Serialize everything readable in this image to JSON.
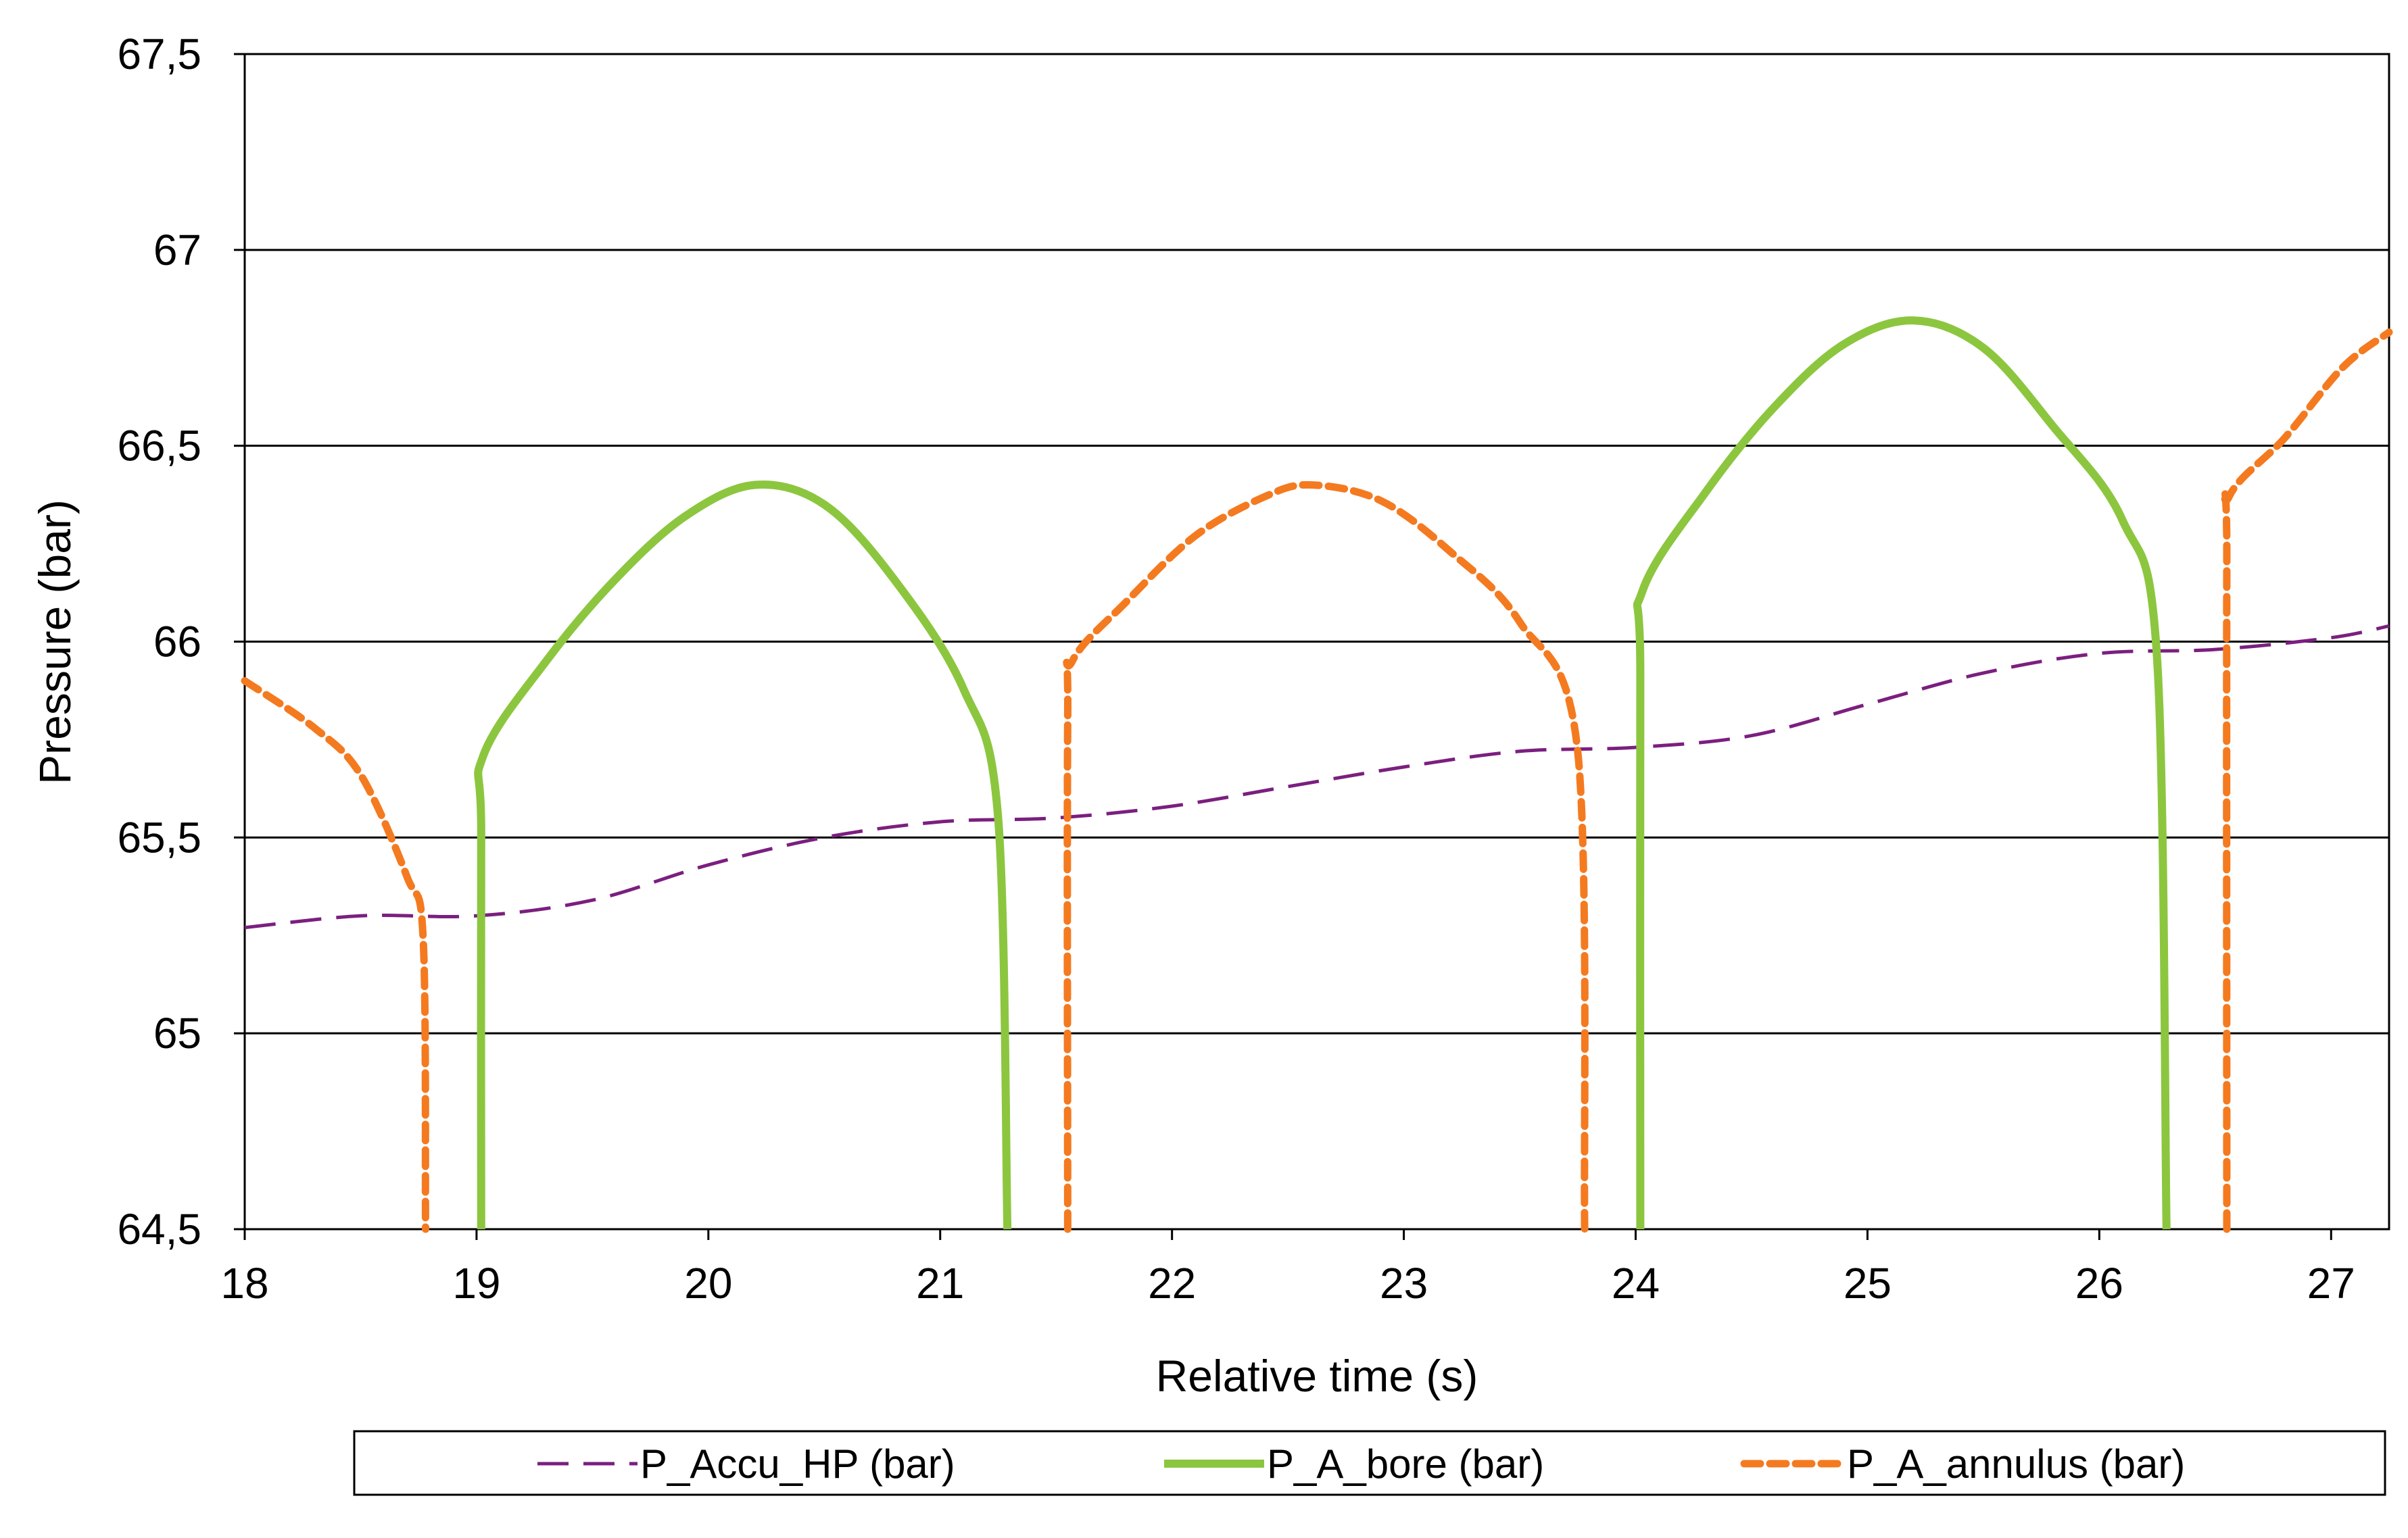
{
  "chart_data": {
    "type": "line",
    "title": "",
    "xlabel": "Relative time (s)",
    "ylabel": "Pressure (bar)",
    "xlim": [
      18,
      27.25
    ],
    "ylim": [
      64.5,
      67.5
    ],
    "grid": {
      "horizontal": true,
      "vertical": false
    },
    "legend_placement": "bottom",
    "x_ticks": [
      18,
      19,
      20,
      21,
      22,
      23,
      24,
      25,
      26,
      27
    ],
    "x_tick_labels": [
      "18",
      "19",
      "20",
      "21",
      "22",
      "23",
      "24",
      "25",
      "26",
      "27"
    ],
    "y_ticks": [
      64.5,
      65,
      65.5,
      66,
      66.5,
      67,
      67.5
    ],
    "y_tick_labels": [
      "64,5",
      "65",
      "65,5",
      "66",
      "66,5",
      "67",
      "67,5"
    ],
    "series": [
      {
        "name": "P_Accu_HP (bar)",
        "color": "#7b1f7f",
        "style": "long-dash-thin",
        "segments": [
          [
            [
              18,
              65.27
            ],
            [
              18.5,
              65.3
            ],
            [
              19,
              65.3
            ],
            [
              19.5,
              65.34
            ],
            [
              20,
              65.43
            ],
            [
              20.5,
              65.5
            ],
            [
              21,
              65.54
            ],
            [
              21.5,
              65.55
            ],
            [
              22,
              65.58
            ],
            [
              22.5,
              65.63
            ],
            [
              23,
              65.68
            ],
            [
              23.5,
              65.72
            ],
            [
              24,
              65.73
            ],
            [
              24.5,
              65.76
            ],
            [
              25,
              65.84
            ],
            [
              25.5,
              65.92
            ],
            [
              26,
              65.97
            ],
            [
              26.5,
              65.98
            ],
            [
              27,
              66.01
            ],
            [
              27.25,
              66.04
            ]
          ]
        ]
      },
      {
        "name": "P_A_bore (bar)",
        "color": "#8cc63f",
        "style": "solid-thick",
        "segments": [
          [
            [
              19.02,
              64.5
            ],
            [
              19.02,
              65.5
            ],
            [
              19.03,
              65.71
            ],
            [
              19.3,
              65.95
            ],
            [
              19.6,
              66.16
            ],
            [
              19.9,
              66.32
            ],
            [
              20.2,
              66.4
            ],
            [
              20.5,
              66.35
            ],
            [
              20.8,
              66.16
            ],
            [
              21.1,
              65.88
            ],
            [
              21.25,
              65.55
            ],
            [
              21.29,
              64.5
            ]
          ],
          [
            [
              24.02,
              64.5
            ],
            [
              24.02,
              65.9
            ],
            [
              24.03,
              66.13
            ],
            [
              24.3,
              66.38
            ],
            [
              24.6,
              66.6
            ],
            [
              24.9,
              66.76
            ],
            [
              25.2,
              66.82
            ],
            [
              25.5,
              66.75
            ],
            [
              25.8,
              66.55
            ],
            [
              26.1,
              66.31
            ],
            [
              26.25,
              65.95
            ],
            [
              26.29,
              64.5
            ]
          ]
        ]
      },
      {
        "name": "P_A_annulus (bar)",
        "color": "#f47a20",
        "style": "short-dash-thick",
        "segments": [
          [
            [
              18,
              65.9
            ],
            [
              18.3,
              65.78
            ],
            [
              18.5,
              65.66
            ],
            [
              18.7,
              65.4
            ],
            [
              18.77,
              65.24
            ],
            [
              18.78,
              64.5
            ]
          ],
          [
            [
              21.55,
              64.5
            ],
            [
              21.55,
              65.8
            ],
            [
              21.57,
              65.95
            ],
            [
              21.8,
              66.1
            ],
            [
              22.1,
              66.27
            ],
            [
              22.4,
              66.37
            ],
            [
              22.6,
              66.4
            ],
            [
              22.9,
              66.36
            ],
            [
              23.2,
              66.23
            ],
            [
              23.5,
              66.05
            ],
            [
              23.75,
              65.72
            ],
            [
              23.78,
              64.5
            ]
          ],
          [
            [
              26.55,
              64.5
            ],
            [
              26.55,
              66.2
            ],
            [
              26.56,
              66.37
            ],
            [
              26.8,
              66.52
            ],
            [
              27.05,
              66.7
            ],
            [
              27.25,
              66.79
            ]
          ]
        ]
      }
    ]
  }
}
